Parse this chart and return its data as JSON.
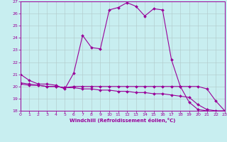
{
  "xlabel": "Windchill (Refroidissement éolien,°C)",
  "background_color": "#c8eef0",
  "line_color": "#990099",
  "grid_color": "#b0c8c8",
  "xlim": [
    0,
    23
  ],
  "ylim": [
    18,
    27
  ],
  "yticks": [
    18,
    19,
    20,
    21,
    22,
    23,
    24,
    25,
    26,
    27
  ],
  "xticks": [
    0,
    1,
    2,
    3,
    4,
    5,
    6,
    7,
    8,
    9,
    10,
    11,
    12,
    13,
    14,
    15,
    16,
    17,
    18,
    19,
    20,
    21,
    22,
    23
  ],
  "curve1_x": [
    0,
    1,
    2,
    3,
    4,
    5,
    6,
    7,
    8,
    9,
    10,
    11,
    12,
    13,
    14,
    15,
    16,
    17,
    18,
    19,
    20,
    21,
    22,
    23
  ],
  "curve1_y": [
    21.0,
    20.5,
    20.2,
    20.2,
    20.1,
    19.8,
    21.1,
    24.2,
    23.2,
    23.1,
    26.3,
    26.5,
    26.9,
    26.6,
    25.8,
    26.4,
    26.3,
    22.2,
    20.0,
    18.7,
    18.1,
    18.0,
    17.9,
    18.0
  ],
  "curve2_x": [
    0,
    1,
    2,
    3,
    4,
    5,
    6,
    7,
    8,
    9,
    10,
    11,
    12,
    13,
    14,
    15,
    16,
    17,
    18,
    19,
    20,
    21,
    22,
    23
  ],
  "curve2_y": [
    20.2,
    20.1,
    20.1,
    20.0,
    20.0,
    19.9,
    19.9,
    19.8,
    19.8,
    19.7,
    19.7,
    19.6,
    19.6,
    19.5,
    19.5,
    19.4,
    19.4,
    19.3,
    19.2,
    19.1,
    18.5,
    18.1,
    18.0,
    18.0
  ],
  "curve3_x": [
    0,
    1,
    2,
    3,
    4,
    5,
    6,
    7,
    8,
    9,
    10,
    11,
    12,
    13,
    14,
    15,
    16,
    17,
    18,
    19,
    20,
    21,
    22,
    23
  ],
  "curve3_y": [
    20.3,
    20.2,
    20.1,
    20.0,
    20.0,
    19.9,
    20.0,
    20.0,
    20.0,
    20.0,
    20.0,
    20.0,
    20.0,
    20.0,
    20.0,
    20.0,
    20.0,
    20.0,
    20.0,
    20.0,
    20.0,
    19.8,
    18.8,
    18.0
  ]
}
